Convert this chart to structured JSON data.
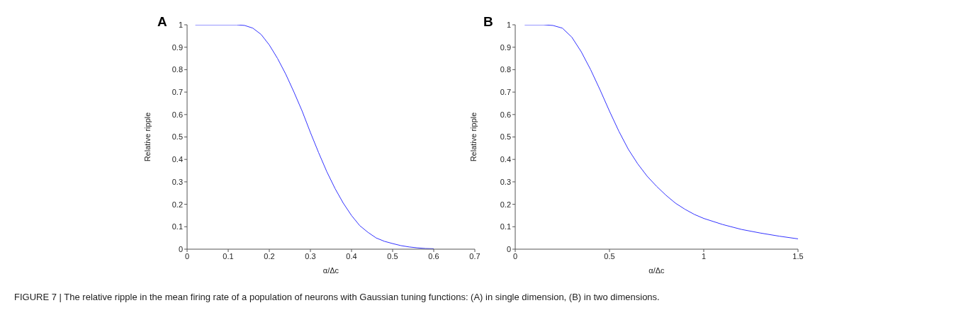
{
  "chart_data": [
    {
      "type": "line",
      "title": "A",
      "xlabel": "α/Δc",
      "ylabel": "Relative ripple",
      "xlim": [
        0,
        0.7
      ],
      "xticks": [
        0,
        0.1,
        0.2,
        0.3,
        0.4,
        0.5,
        0.6,
        0.7
      ],
      "ylim": [
        0,
        1
      ],
      "yticks": [
        0,
        0.1,
        0.2,
        0.3,
        0.4,
        0.5,
        0.6,
        0.7,
        0.8,
        0.9,
        1
      ],
      "x": [
        0.02,
        0.1,
        0.12,
        0.14,
        0.16,
        0.18,
        0.2,
        0.22,
        0.24,
        0.26,
        0.28,
        0.3,
        0.32,
        0.34,
        0.36,
        0.38,
        0.4,
        0.42,
        0.44,
        0.46,
        0.48,
        0.5,
        0.52,
        0.54,
        0.56,
        0.58,
        0.6
      ],
      "series": [
        {
          "color": "#3333ff",
          "values": [
            1,
            1,
            1,
            0.997,
            0.985,
            0.957,
            0.91,
            0.85,
            0.78,
            0.7,
            0.615,
            0.52,
            0.43,
            0.345,
            0.27,
            0.205,
            0.15,
            0.105,
            0.075,
            0.05,
            0.035,
            0.025,
            0.016,
            0.01,
            0.006,
            0.003,
            0.002
          ]
        }
      ],
      "annotations": [
        "FIGURE 7 | The relative ripple in the mean firing rate of a population of neurons with Gaussian tuning functions: (A) in single dimension, (B) in two dimensions."
      ]
    },
    {
      "type": "line",
      "title": "B",
      "xlabel": "α/Δc",
      "ylabel": "Relative ripple",
      "xlim": [
        0,
        1.5
      ],
      "xticks": [
        0,
        0.5,
        1,
        1.5
      ],
      "ylim": [
        0,
        1
      ],
      "yticks": [
        0,
        0.1,
        0.2,
        0.3,
        0.4,
        0.5,
        0.6,
        0.7,
        0.8,
        0.9,
        1
      ],
      "x": [
        0.05,
        0.15,
        0.2,
        0.25,
        0.3,
        0.35,
        0.4,
        0.45,
        0.5,
        0.55,
        0.6,
        0.65,
        0.7,
        0.75,
        0.8,
        0.85,
        0.9,
        0.95,
        1.0,
        1.1,
        1.2,
        1.3,
        1.4,
        1.5
      ],
      "series": [
        {
          "color": "#3333ff",
          "values": [
            1,
            1,
            0.997,
            0.985,
            0.945,
            0.88,
            0.8,
            0.71,
            0.615,
            0.525,
            0.445,
            0.38,
            0.325,
            0.28,
            0.24,
            0.205,
            0.178,
            0.155,
            0.137,
            0.11,
            0.088,
            0.072,
            0.058,
            0.046
          ]
        }
      ]
    }
  ]
}
